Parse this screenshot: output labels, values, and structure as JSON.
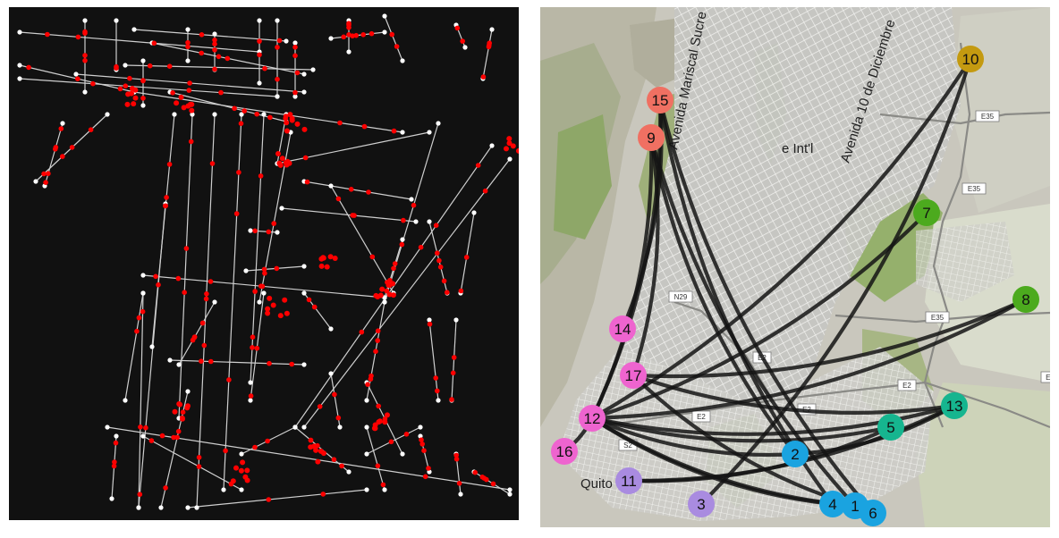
{
  "left_panel": {
    "background": "#111111",
    "edge_color": "#cfcfcf",
    "node_color": "#ffffff",
    "highlight_color": "#ff0000"
  },
  "right_panel": {
    "place_labels": [
      "Avenida Mariscal Sucre",
      "Avenida 10 de Diciembre",
      "Quito",
      "e Int'l"
    ],
    "road_shields": [
      "E35",
      "E35",
      "E35",
      "N29",
      "E2",
      "E2",
      "E2",
      "E2",
      "E2",
      "S2"
    ],
    "stops": [
      {
        "id": "1",
        "color": "#1aa3e0"
      },
      {
        "id": "2",
        "color": "#1aa3e0"
      },
      {
        "id": "3",
        "color": "#a98be0"
      },
      {
        "id": "4",
        "color": "#1aa3e0"
      },
      {
        "id": "5",
        "color": "#16b58f"
      },
      {
        "id": "6",
        "color": "#1aa3e0"
      },
      {
        "id": "7",
        "color": "#4caa1e"
      },
      {
        "id": "8",
        "color": "#4caa1e"
      },
      {
        "id": "9",
        "color": "#f07062"
      },
      {
        "id": "10",
        "color": "#c49a10"
      },
      {
        "id": "11",
        "color": "#a98be0"
      },
      {
        "id": "12",
        "color": "#ee64cf"
      },
      {
        "id": "13",
        "color": "#16b58f"
      },
      {
        "id": "14",
        "color": "#ee64cf"
      },
      {
        "id": "15",
        "color": "#f07062"
      },
      {
        "id": "16",
        "color": "#ee64cf"
      },
      {
        "id": "17",
        "color": "#ee64cf"
      }
    ],
    "routes": [
      [
        "12",
        "10"
      ],
      [
        "12",
        "7"
      ],
      [
        "12",
        "8"
      ],
      [
        "12",
        "13"
      ],
      [
        "12",
        "5"
      ],
      [
        "12",
        "2"
      ],
      [
        "12",
        "4"
      ],
      [
        "12",
        "1"
      ],
      [
        "12",
        "15"
      ],
      [
        "12",
        "9"
      ],
      [
        "17",
        "8"
      ],
      [
        "17",
        "13"
      ],
      [
        "17",
        "1"
      ],
      [
        "17",
        "9"
      ],
      [
        "14",
        "15"
      ],
      [
        "16",
        "12"
      ],
      [
        "9",
        "2"
      ],
      [
        "9",
        "1"
      ],
      [
        "15",
        "6"
      ],
      [
        "15",
        "4"
      ],
      [
        "3",
        "10"
      ],
      [
        "11",
        "13"
      ],
      [
        "11",
        "5"
      ],
      [
        "2",
        "13"
      ]
    ]
  }
}
